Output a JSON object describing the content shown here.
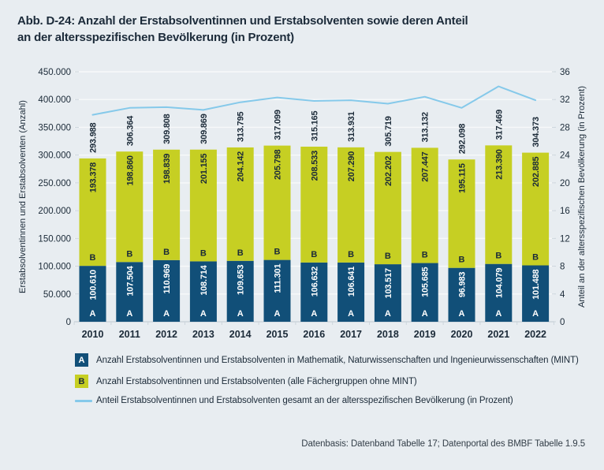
{
  "title": {
    "lines": [
      "Abb. D-24: Anzahl der Erstabsolventinnen und Erstabsolventen sowie deren Anteil",
      "an der altersspezifischen Bevölkerung (in Prozent)"
    ]
  },
  "footer": {
    "source": "Datenbasis: Datenband Tabelle 17; Datenportal des BMBF Tabelle 1.9.5"
  },
  "colors": {
    "background": "#e8edf1",
    "bar_mint_blue": "#114f78",
    "bar_other_yellow": "#c6cf23",
    "line_blue": "#85c9ea",
    "text_navy": "#1b2a38",
    "grid_white": "#f7f9fa",
    "baseline_gray": "#ccd5dc",
    "label_on_blue": "#ffffff"
  },
  "chart_data": {
    "type": "bar",
    "subtype": "stacked-bars-with-percent-line",
    "categories": [
      "2010",
      "2011",
      "2012",
      "2013",
      "2014",
      "2015",
      "2016",
      "2017",
      "2018",
      "2019",
      "2020",
      "2021",
      "2022"
    ],
    "series": [
      {
        "key": "A",
        "name": "Anzahl Erstabsolventinnen und Erstabsolventen in Mathematik, Naturwissenschaften und Ingenieurwissenschaften (MINT)",
        "color": "#114f78",
        "value_labels": [
          "100.610",
          "107.504",
          "110.969",
          "108.714",
          "109.653",
          "111.301",
          "106.632",
          "106.641",
          "103.517",
          "105.685",
          "96.983",
          "104.079",
          "101.488"
        ]
      },
      {
        "key": "B",
        "name": "Anzahl Erstabsolventinnen und Erstabsolventen (alle Fächergruppen ohne MINT)",
        "color": "#c6cf23",
        "value_labels": [
          "193.378",
          "198.860",
          "198.839",
          "201.155",
          "204.142",
          "205.798",
          "208.533",
          "207.290",
          "202.202",
          "207.447",
          "195.115",
          "213.390",
          "202.885"
        ]
      }
    ],
    "total_labels": [
      "293.988",
      "306.364",
      "309.808",
      "309.869",
      "313.795",
      "317.099",
      "315.165",
      "313.931",
      "305.719",
      "313.132",
      "292.098",
      "317.469",
      "304.373"
    ],
    "line_series": {
      "name": "Anteil Erstabsolventinnen und Erstabsolventen gesamt an der altersspezifischen Bevölkerung (in Prozent)",
      "color": "#85c9ea",
      "values": [
        29.8,
        30.8,
        30.9,
        30.5,
        31.6,
        32.3,
        31.8,
        31.9,
        31.4,
        32.4,
        30.8,
        33.9,
        31.9
      ]
    },
    "left_axis": {
      "title": "Erstabsolventinnen und Erstabsolventen (Anzahl)",
      "ticks": [
        "450.000",
        "400.000",
        "350.000",
        "300.000",
        "250.000",
        "200.000",
        "150.000",
        "100.000",
        "50.000",
        "0"
      ],
      "max": 450000,
      "step": 50000
    },
    "right_axis": {
      "title": "Anteil an der altersspezifischen Bevölkerung (in Prozent)",
      "ticks": [
        "36",
        "32",
        "28",
        "24",
        "20",
        "16",
        "12",
        "8",
        "4",
        "0"
      ],
      "max": 36,
      "step": 4
    },
    "grid": true,
    "legend_position": "bottom"
  },
  "legend": {
    "items": [
      {
        "swatch": "A",
        "swatch_color": "#114f78",
        "text": "Anzahl Erstabsolventinnen und Erstabsolventen in Mathematik, Naturwissenschaften und Ingenieurwissenschaften (MINT)"
      },
      {
        "swatch": "B",
        "swatch_color": "#c6cf23",
        "text": "Anzahl Erstabsolventinnen und Erstabsolventen (alle Fächergruppen ohne MINT)"
      },
      {
        "swatch": "line",
        "swatch_color": "#85c9ea",
        "text": "Anteil Erstabsolventinnen und Erstabsolventen gesamt an der altersspezifischen Bevölkerung (in Prozent)"
      }
    ]
  }
}
